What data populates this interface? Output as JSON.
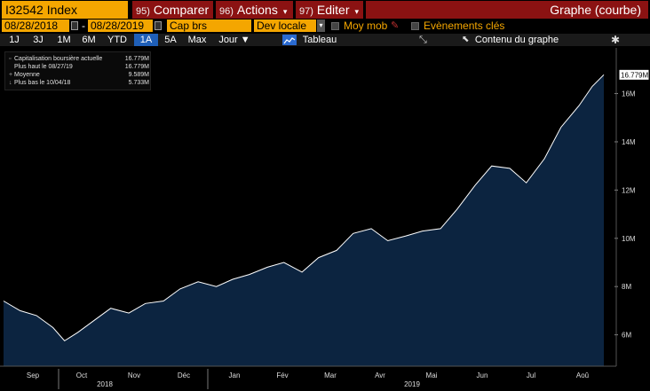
{
  "header": {
    "ticker": "I32542 Index",
    "compare": {
      "num": "95)",
      "label": "Comparer"
    },
    "actions": {
      "num": "96)",
      "label": "Actions"
    },
    "edit": {
      "num": "97)",
      "label": "Editer"
    },
    "title": "Graphe (courbe)"
  },
  "options": {
    "start_date": "08/28/2018",
    "end_date": "08/28/2019",
    "dash": "-",
    "field": "Cap brs",
    "currency": "Dev locale",
    "moving_avg_label": "Moy mob",
    "events_label": "Evènements clés"
  },
  "range": {
    "buttons": [
      "1J",
      "3J",
      "1M",
      "6M",
      "YTD",
      "1A",
      "5A",
      "Max"
    ],
    "active": "1A",
    "frequency": "Jour",
    "table_label": "Tableau",
    "content_label": "Contenu du graphe"
  },
  "legend": [
    {
      "mark": "▫",
      "label": "Capitalisation boursière actuelle",
      "value": "16.779M"
    },
    {
      "mark": "",
      "label": "Plus haut le 08/27/19",
      "value": "16.779M"
    },
    {
      "mark": "+",
      "label": "Moyenne",
      "value": "9.589M"
    },
    {
      "mark": "↓",
      "label": "Plus bas le 10/04/18",
      "value": "5.733M"
    }
  ],
  "colors": {
    "orange": "#f4a600",
    "red_bar": "#8b1212",
    "fill": "#0c2440",
    "line": "#ffffff"
  },
  "chart_data": {
    "type": "area",
    "ylim": [
      4.7,
      17.6
    ],
    "yticks": [
      6,
      8,
      10,
      12,
      14,
      16
    ],
    "ytick_labels": [
      "6M",
      "8M",
      "10M",
      "12M",
      "14M",
      "16M"
    ],
    "last_value_label": "16.779M",
    "months": [
      "Sep",
      "Oct",
      "Nov",
      "Déc",
      "Jan",
      "Fév",
      "Mar",
      "Avr",
      "Mai",
      "Jun",
      "Jul",
      "Aoû"
    ],
    "years": [
      "2018",
      "2019"
    ],
    "x": [
      "08/28/18",
      "09/07/18",
      "09/17/18",
      "09/27/18",
      "10/04/18",
      "10/12/18",
      "10/22/18",
      "11/01/18",
      "11/12/18",
      "11/22/18",
      "12/03/18",
      "12/13/18",
      "12/24/18",
      "01/04/19",
      "01/14/19",
      "01/24/19",
      "02/04/19",
      "02/14/19",
      "02/25/19",
      "03/07/19",
      "03/18/19",
      "03/28/19",
      "04/08/19",
      "04/18/19",
      "04/29/19",
      "05/09/19",
      "05/20/19",
      "05/30/19",
      "06/10/19",
      "06/20/19",
      "07/01/19",
      "07/11/19",
      "07/22/19",
      "08/01/19",
      "08/12/19",
      "08/20/19",
      "08/27/19"
    ],
    "series": [
      {
        "values": [
          7.4,
          7.0,
          6.8,
          6.3,
          5.75,
          6.1,
          6.6,
          7.1,
          6.9,
          7.3,
          7.4,
          7.9,
          8.2,
          8.0,
          8.3,
          8.5,
          8.8,
          9.0,
          8.6,
          9.2,
          9.5,
          10.2,
          10.4,
          9.9,
          10.1,
          10.3,
          10.4,
          11.2,
          12.2,
          13.0,
          12.9,
          12.3,
          13.3,
          14.6,
          15.5,
          16.3,
          16.779
        ]
      }
    ]
  }
}
